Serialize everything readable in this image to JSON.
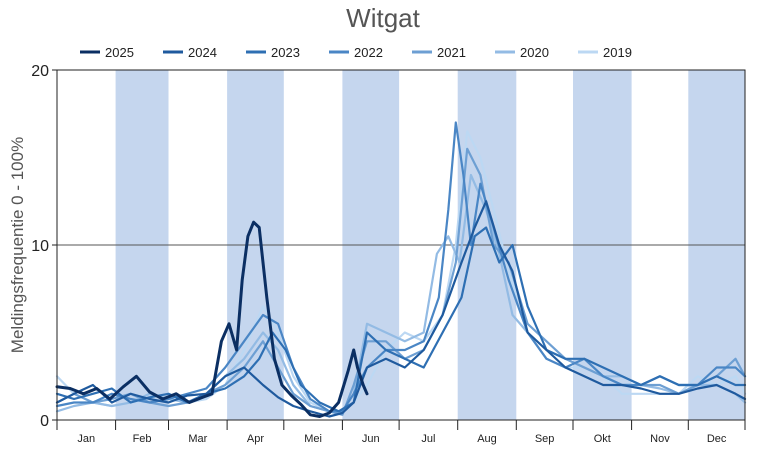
{
  "chart_data": {
    "type": "line",
    "title": "Witgat",
    "xlabel": "",
    "ylabel": "Meldingsfrequentie 0 - 100%",
    "ylim": [
      0,
      20
    ],
    "yticks": [
      "0",
      "10",
      "20"
    ],
    "ygrid": [
      10
    ],
    "months": [
      "Jan",
      "Feb",
      "Mar",
      "Apr",
      "Mei",
      "Jun",
      "Jul",
      "Aug",
      "Sep",
      "Okt",
      "Nov",
      "Dec"
    ],
    "shaded_months": [
      "Feb",
      "Apr",
      "Jun",
      "Aug",
      "Okt",
      "Dec"
    ],
    "legend_position": "top",
    "colors": {
      "shade": "#c5d6ee",
      "grid": "#555555",
      "axis": "#222222"
    },
    "x_unit": "day of year",
    "series": [
      {
        "name": "2025",
        "color": "#0b2f63",
        "x": [
          1,
          8,
          15,
          22,
          29,
          36,
          43,
          50,
          57,
          64,
          71,
          78,
          83,
          88,
          92,
          96,
          99,
          102,
          105,
          108,
          112,
          116,
          120,
          125,
          130,
          135,
          140,
          145,
          150,
          155,
          158,
          160,
          163,
          165
        ],
        "y": [
          1.9,
          1.8,
          1.5,
          1.8,
          1.2,
          1.9,
          2.5,
          1.6,
          1.2,
          1.5,
          1.0,
          1.3,
          1.5,
          4.5,
          5.5,
          4.0,
          8.0,
          10.5,
          11.3,
          11.0,
          7.0,
          3.5,
          2.0,
          1.4,
          0.9,
          0.3,
          0.2,
          0.4,
          1.0,
          2.8,
          4.0,
          3.0,
          2.0,
          1.5
        ]
      },
      {
        "name": "2024",
        "color": "#1f5a9e",
        "x": [
          1,
          10,
          20,
          30,
          40,
          50,
          60,
          70,
          80,
          90,
          100,
          110,
          118,
          126,
          135,
          145,
          152,
          158,
          165,
          175,
          185,
          195,
          205,
          215,
          222,
          228,
          235,
          242,
          250,
          260,
          270,
          280,
          290,
          300,
          310,
          320,
          330,
          340,
          350,
          360,
          365
        ],
        "y": [
          1.0,
          1.5,
          2.0,
          1.0,
          1.5,
          1.2,
          1.0,
          1.4,
          1.5,
          2.5,
          3.0,
          2.0,
          1.3,
          0.8,
          0.5,
          0.2,
          0.4,
          1.0,
          3.0,
          3.5,
          3.0,
          4.0,
          6.0,
          9.0,
          11.0,
          12.5,
          10.0,
          8.5,
          5.0,
          4.0,
          3.0,
          2.5,
          2.0,
          2.0,
          1.8,
          1.5,
          1.5,
          1.8,
          2.0,
          1.5,
          1.2
        ]
      },
      {
        "name": "2023",
        "color": "#2e6fb3",
        "x": [
          1,
          10,
          20,
          30,
          40,
          50,
          60,
          70,
          80,
          90,
          100,
          108,
          115,
          122,
          130,
          140,
          150,
          158,
          165,
          175,
          185,
          195,
          205,
          215,
          222,
          228,
          235,
          242,
          250,
          260,
          270,
          280,
          290,
          300,
          310,
          320,
          330,
          340,
          350,
          360,
          365
        ],
        "y": [
          1.5,
          1.2,
          1.5,
          1.8,
          1.0,
          1.3,
          1.5,
          1.0,
          1.5,
          1.8,
          2.5,
          3.5,
          5.0,
          4.0,
          2.0,
          1.0,
          0.5,
          1.0,
          5.0,
          4.0,
          3.5,
          3.0,
          5.0,
          7.0,
          10.5,
          11.0,
          9.0,
          10.0,
          6.5,
          4.0,
          3.5,
          3.5,
          3.0,
          2.5,
          2.0,
          2.5,
          2.0,
          2.0,
          2.5,
          2.0,
          2.0
        ]
      },
      {
        "name": "2022",
        "color": "#4a86c5",
        "x": [
          1,
          10,
          20,
          30,
          40,
          50,
          60,
          70,
          80,
          90,
          100,
          110,
          118,
          126,
          135,
          145,
          152,
          158,
          165,
          175,
          185,
          195,
          203,
          208,
          212,
          216,
          220,
          225,
          232,
          240,
          250,
          260,
          270,
          280,
          290,
          300,
          310,
          320,
          330,
          340,
          350,
          360,
          365
        ],
        "y": [
          0.8,
          1.0,
          1.0,
          1.5,
          1.2,
          1.0,
          1.2,
          1.5,
          1.8,
          3.0,
          4.5,
          6.0,
          5.5,
          3.0,
          1.2,
          0.5,
          0.5,
          1.5,
          3.0,
          4.0,
          4.0,
          4.5,
          7.0,
          12.0,
          17.0,
          14.0,
          10.0,
          13.5,
          11.0,
          8.0,
          5.0,
          3.5,
          3.0,
          3.5,
          2.5,
          2.0,
          2.0,
          2.5,
          2.0,
          2.0,
          3.0,
          3.0,
          2.5
        ]
      },
      {
        "name": "2021",
        "color": "#6d9fd3",
        "x": [
          1,
          10,
          20,
          30,
          40,
          50,
          60,
          70,
          80,
          90,
          100,
          110,
          118,
          126,
          135,
          145,
          152,
          158,
          165,
          175,
          185,
          195,
          205,
          212,
          218,
          225,
          232,
          240,
          250,
          260,
          270,
          280,
          290,
          300,
          310,
          320,
          330,
          340,
          350,
          360,
          365
        ],
        "y": [
          1.0,
          1.5,
          1.0,
          1.2,
          1.5,
          1.0,
          0.8,
          1.0,
          1.5,
          2.0,
          3.0,
          4.5,
          3.0,
          1.5,
          0.8,
          0.5,
          0.3,
          2.0,
          4.5,
          4.5,
          3.5,
          4.0,
          6.0,
          9.0,
          15.5,
          14.0,
          10.0,
          9.0,
          5.5,
          4.5,
          3.5,
          3.0,
          2.5,
          2.0,
          2.0,
          2.0,
          1.5,
          2.0,
          2.5,
          3.5,
          2.5
        ]
      },
      {
        "name": "2020",
        "color": "#93bbe4",
        "x": [
          1,
          10,
          20,
          30,
          40,
          50,
          60,
          70,
          80,
          90,
          100,
          110,
          118,
          126,
          135,
          145,
          152,
          158,
          165,
          175,
          185,
          195,
          202,
          208,
          214,
          220,
          228,
          235,
          242,
          250,
          260,
          270,
          280,
          290,
          300,
          310,
          320,
          330,
          340,
          350,
          360,
          365
        ],
        "y": [
          0.5,
          0.8,
          1.0,
          0.8,
          1.0,
          1.5,
          1.2,
          1.0,
          1.5,
          2.5,
          3.5,
          5.0,
          4.0,
          2.0,
          0.8,
          0.5,
          0.5,
          1.5,
          5.5,
          5.0,
          4.5,
          5.0,
          9.5,
          10.5,
          9.0,
          14.0,
          12.0,
          9.5,
          6.0,
          5.0,
          4.0,
          3.5,
          3.0,
          2.5,
          2.5,
          2.0,
          1.8,
          1.5,
          2.0,
          2.0,
          1.5,
          1.0
        ]
      },
      {
        "name": "2019",
        "color": "#bcd8f3",
        "x": [
          1,
          10,
          20,
          30,
          40,
          50,
          60,
          70,
          80,
          90,
          100,
          110,
          118,
          126,
          135,
          145,
          152,
          158,
          165,
          175,
          185,
          195,
          205,
          212,
          218,
          225,
          232,
          240,
          250,
          260,
          270,
          280,
          290,
          300,
          310,
          320,
          330,
          340,
          350,
          360,
          365
        ],
        "y": [
          2.5,
          1.5,
          1.0,
          0.8,
          1.0,
          1.2,
          1.5,
          1.0,
          1.2,
          2.0,
          4.0,
          6.5,
          5.0,
          2.5,
          1.0,
          0.5,
          0.5,
          1.0,
          2.0,
          4.0,
          5.0,
          4.5,
          6.0,
          10.0,
          16.5,
          15.0,
          12.0,
          8.5,
          5.0,
          3.5,
          3.0,
          3.0,
          2.5,
          1.5,
          1.5,
          1.5,
          1.5,
          2.5,
          2.0,
          2.5,
          1.5
        ]
      }
    ]
  }
}
